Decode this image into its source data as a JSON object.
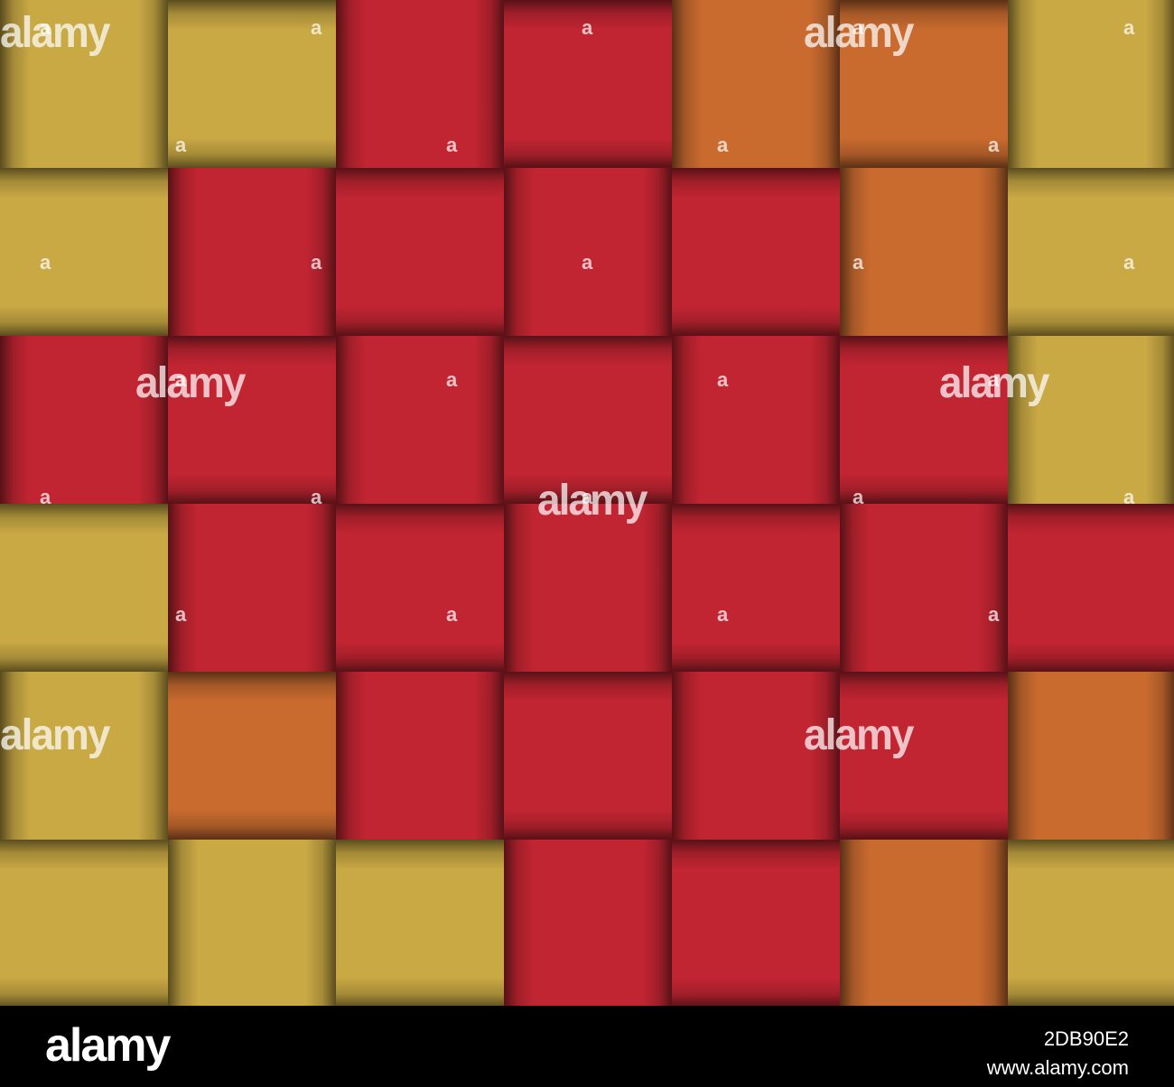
{
  "colors": {
    "Y": "#c9a944",
    "R": "#c22532",
    "O": "#c96b2f"
  },
  "grid": [
    [
      "Y",
      "Y",
      "R",
      "R",
      "O",
      "O",
      "Y"
    ],
    [
      "Y",
      "R",
      "R",
      "R",
      "R",
      "O",
      "Y"
    ],
    [
      "R",
      "R",
      "R",
      "R",
      "R",
      "R",
      "Y"
    ],
    [
      "Y",
      "R",
      "R",
      "R",
      "R",
      "R",
      "R"
    ],
    [
      "Y",
      "O",
      "R",
      "R",
      "R",
      "R",
      "O"
    ],
    [
      "Y",
      "Y",
      "Y",
      "R",
      "R",
      "O",
      "Y"
    ]
  ],
  "watermark": {
    "logo": "alamy",
    "small": "a"
  },
  "footer": {
    "logo": "alamy",
    "image_id": "2DB90E2",
    "url": "www.alamy.com"
  }
}
